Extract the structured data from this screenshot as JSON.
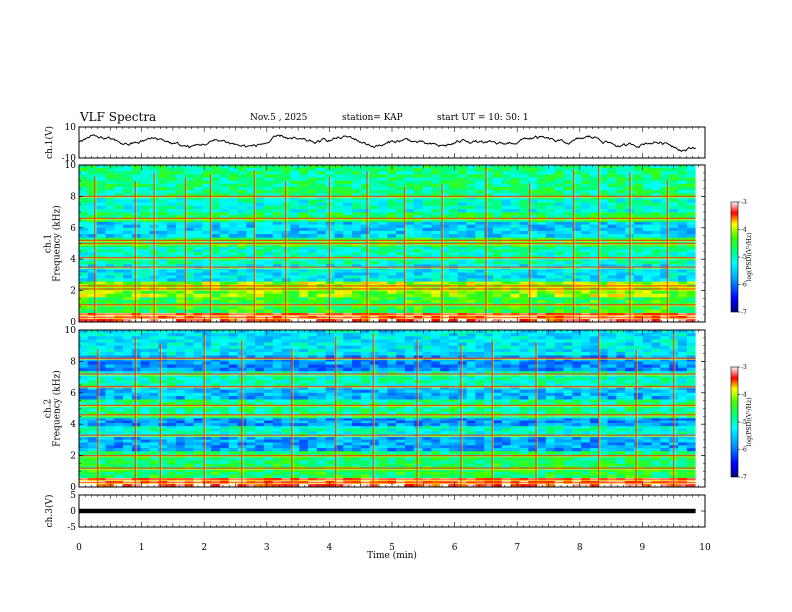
{
  "header": {
    "title": "VLF Spectra",
    "date": "Nov.5  , 2025",
    "station": "station= KAP",
    "start": "start  UT  =   10: 50: 1"
  },
  "chart_data": [
    {
      "type": "line",
      "name": "ch1-waveform",
      "ylabel": "ch.1(V)",
      "ylim": [
        -10,
        10
      ],
      "yticks": [
        "10",
        "-10"
      ],
      "x_range_min": [
        0,
        9.85
      ],
      "y_mean": 0,
      "y_amplitude": 4.5
    },
    {
      "type": "heatmap",
      "name": "ch1-spectrogram",
      "ylabel": "ch.1\nFrequency (kHz)",
      "ylabel_lines": [
        "ch.1",
        "Frequency (kHz)"
      ],
      "ylim": [
        0,
        10
      ],
      "yticks": [
        "0",
        "2",
        "4",
        "6",
        "8",
        "10"
      ],
      "x_range_min": [
        0,
        9.85
      ],
      "bands_khz": [
        {
          "lo": 0.0,
          "hi": 0.6,
          "level": 0.95
        },
        {
          "lo": 0.6,
          "hi": 1.6,
          "level": 0.62
        },
        {
          "lo": 1.6,
          "hi": 2.6,
          "level": 0.72
        },
        {
          "lo": 2.6,
          "hi": 3.7,
          "level": 0.42
        },
        {
          "lo": 3.7,
          "hi": 4.8,
          "level": 0.5
        },
        {
          "lo": 4.8,
          "hi": 5.4,
          "level": 0.6
        },
        {
          "lo": 5.4,
          "hi": 6.4,
          "level": 0.38
        },
        {
          "lo": 6.4,
          "hi": 7.0,
          "level": 0.58
        },
        {
          "lo": 7.0,
          "hi": 8.0,
          "level": 0.48
        },
        {
          "lo": 8.0,
          "hi": 10.0,
          "level": 0.55
        }
      ],
      "lines_khz": [
        0.3,
        0.5,
        1.1,
        2.1,
        2.3,
        3.5,
        4.1,
        5.0,
        5.2,
        6.6,
        8.0
      ],
      "sferics_min": [
        0.25,
        0.9,
        1.2,
        1.7,
        2.1,
        2.8,
        3.3,
        4.0,
        4.6,
        5.2,
        5.8,
        6.5,
        7.2,
        7.9,
        8.3,
        8.8,
        9.4
      ],
      "colorbar": {
        "label": "log(PSD)(V²/Hz)",
        "ticks": [
          "-3",
          "-4",
          "-5",
          "-6",
          "-7"
        ],
        "range": [
          -7,
          -3
        ]
      }
    },
    {
      "type": "heatmap",
      "name": "ch2-spectrogram",
      "ylabel": "ch.2\nFrequency (kHz)",
      "ylabel_lines": [
        "ch.2",
        "Frequency (kHz)"
      ],
      "ylim": [
        0,
        10
      ],
      "yticks": [
        "0",
        "2",
        "4",
        "6",
        "8",
        "10"
      ],
      "x_range_min": [
        0,
        9.85
      ],
      "bands_khz": [
        {
          "lo": 0.0,
          "hi": 0.6,
          "level": 0.95
        },
        {
          "lo": 0.6,
          "hi": 1.5,
          "level": 0.6
        },
        {
          "lo": 1.5,
          "hi": 2.3,
          "level": 0.58
        },
        {
          "lo": 2.3,
          "hi": 3.2,
          "level": 0.32
        },
        {
          "lo": 3.2,
          "hi": 3.9,
          "level": 0.48
        },
        {
          "lo": 3.9,
          "hi": 4.4,
          "level": 0.3
        },
        {
          "lo": 4.4,
          "hi": 5.6,
          "level": 0.55
        },
        {
          "lo": 5.6,
          "hi": 6.4,
          "level": 0.34
        },
        {
          "lo": 6.4,
          "hi": 7.4,
          "level": 0.5
        },
        {
          "lo": 7.4,
          "hi": 8.4,
          "level": 0.3
        },
        {
          "lo": 8.4,
          "hi": 10.0,
          "level": 0.42
        }
      ],
      "lines_khz": [
        0.3,
        0.5,
        1.2,
        2.0,
        3.3,
        4.6,
        5.2,
        6.4,
        7.2,
        8.2
      ],
      "sferics_min": [
        0.3,
        0.9,
        1.3,
        2.0,
        2.6,
        3.4,
        4.1,
        4.7,
        5.4,
        6.1,
        6.6,
        7.3,
        8.3,
        8.9,
        9.5
      ],
      "colorbar": {
        "label": "log(PSD)(V²/Hz)",
        "ticks": [
          "-3",
          "-4",
          "-5",
          "-6",
          "-7"
        ],
        "range": [
          -7,
          -3
        ]
      }
    },
    {
      "type": "line",
      "name": "ch3-waveform",
      "ylabel": "ch.3(V)",
      "ylim": [
        -5,
        5
      ],
      "yticks": [
        "5",
        "0",
        "-5"
      ],
      "x_range_min": [
        0,
        9.85
      ],
      "y_mean": 0,
      "y_amplitude": 0.7
    }
  ],
  "xaxis": {
    "label": "Time  (min)",
    "ticks": [
      "0",
      "1",
      "2",
      "3",
      "4",
      "5",
      "6",
      "7",
      "8",
      "9",
      "10"
    ],
    "xlim": [
      0,
      10
    ]
  }
}
